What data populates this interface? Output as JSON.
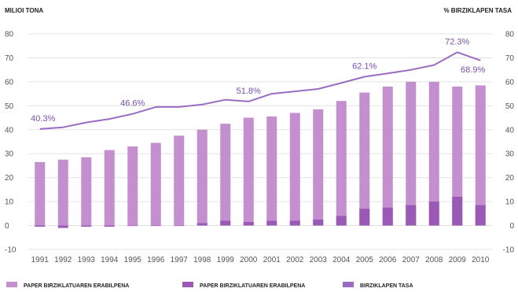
{
  "chart_data": {
    "type": "bar",
    "title": "",
    "ylabel_left": "MILIOI TONA",
    "ylabel_right": "% BIRZIKLAPEN TASA",
    "ylim": [
      -10,
      80
    ],
    "yticks": [
      -10,
      0,
      10,
      20,
      30,
      40,
      50,
      60,
      70,
      80
    ],
    "categories": [
      "1991",
      "1992",
      "1993",
      "1994",
      "1995",
      "1996",
      "1997",
      "1998",
      "1999",
      "2000",
      "2001",
      "2002",
      "2003",
      "2004",
      "2005",
      "2006",
      "2007",
      "2008",
      "2009",
      "2010"
    ],
    "series": [
      {
        "name": "PAPER BIRZIKLATUAREN ERABILPENA",
        "type": "bar",
        "color": "#c48fcf",
        "values": [
          26.5,
          27.5,
          28.5,
          31.5,
          33,
          34.5,
          37.5,
          40,
          42.5,
          45,
          45.5,
          47,
          48.5,
          52,
          55.5,
          58,
          60,
          60,
          58,
          58.5
        ]
      },
      {
        "name": "PAPER BIRZIKLATUAREN ERABILPENA",
        "type": "bar",
        "color": "#9b59b6",
        "values": [
          -0.5,
          -1,
          -0.5,
          -0.5,
          0,
          0,
          0,
          1,
          2,
          1.5,
          2,
          2,
          2.5,
          4,
          7,
          7.5,
          8.5,
          10,
          12,
          8.5
        ]
      },
      {
        "name": "BIRZIKLAPEN TASA",
        "type": "line",
        "color": "#9a6cc4",
        "values": [
          40.3,
          41,
          43,
          44.5,
          46.6,
          49.5,
          49.5,
          50.5,
          52.5,
          51.8,
          55,
          56,
          57,
          59.5,
          62.1,
          63.5,
          65,
          67,
          72.3,
          68.9
        ]
      }
    ],
    "annotations": [
      {
        "x": "1991",
        "text": "40.3%"
      },
      {
        "x": "1995",
        "text": "46.6%"
      },
      {
        "x": "2000",
        "text": "51.8%"
      },
      {
        "x": "2005",
        "text": "62.1%"
      },
      {
        "x": "2009",
        "text": "72.3%"
      },
      {
        "x": "2010",
        "text": "68.9%"
      }
    ],
    "grid": true,
    "legend_position": "bottom"
  }
}
